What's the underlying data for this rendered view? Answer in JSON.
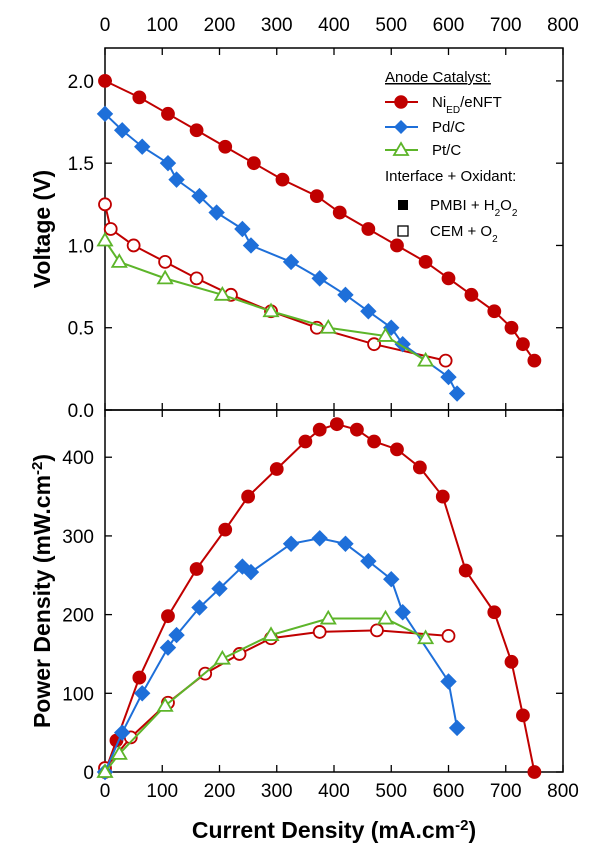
{
  "chart_data": [
    {
      "type": "line",
      "panel": "top",
      "ylabel": "Voltage (V)",
      "xlim": [
        0,
        800
      ],
      "ylim": [
        0,
        2.2
      ],
      "x_ticks": [
        "0",
        "100",
        "200",
        "300",
        "400",
        "500",
        "600",
        "700",
        "800"
      ],
      "y_ticks": [
        "0.0",
        "0.5",
        "1.0",
        "1.5",
        "2.0"
      ],
      "series": [
        {
          "name": "Ni/eNFT",
          "color": "#c00000",
          "marker": "circle",
          "fill": "filled",
          "x": [
            0,
            60,
            110,
            160,
            210,
            260,
            310,
            370,
            410,
            460,
            510,
            560,
            600,
            640,
            680,
            710,
            730,
            750
          ],
          "y": [
            2.0,
            1.9,
            1.8,
            1.7,
            1.6,
            1.5,
            1.4,
            1.3,
            1.2,
            1.1,
            1.0,
            0.9,
            0.8,
            0.7,
            0.6,
            0.5,
            0.4,
            0.3
          ]
        },
        {
          "name": "Ni/eNFT (CEM + O2)",
          "color": "#c00000",
          "marker": "circle",
          "fill": "open",
          "x": [
            0,
            10,
            50,
            105,
            160,
            220,
            290,
            370,
            470,
            595
          ],
          "y": [
            1.25,
            1.1,
            1.0,
            0.9,
            0.8,
            0.7,
            0.6,
            0.5,
            0.4,
            0.3
          ]
        },
        {
          "name": "Pd/C",
          "color": "#1e6fd9",
          "marker": "diamond",
          "fill": "filled",
          "x": [
            0,
            30,
            65,
            110,
            125,
            165,
            195,
            240,
            255,
            325,
            375,
            420,
            460,
            500,
            520,
            600,
            615
          ],
          "y": [
            1.8,
            1.7,
            1.6,
            1.5,
            1.4,
            1.3,
            1.2,
            1.1,
            1.0,
            0.9,
            0.8,
            0.7,
            0.6,
            0.5,
            0.4,
            0.2,
            0.1
          ]
        },
        {
          "name": "Pt/C",
          "color": "#5db52a",
          "marker": "triangle",
          "fill": "open",
          "x": [
            0,
            25,
            105,
            205,
            290,
            390,
            490,
            560
          ],
          "y": [
            1.03,
            0.9,
            0.8,
            0.7,
            0.6,
            0.5,
            0.45,
            0.3
          ]
        }
      ],
      "legend": {
        "placement": "top-right",
        "header1": "Anode Catalyst:",
        "entry1_main": "Ni",
        "entry1_sub": "ED",
        "entry1_rest": "/eNFT",
        "entry2": "Pd/C",
        "entry3": "Pt/C",
        "header2": "Interface + Oxidant:",
        "entry4_main": "PMBI + H",
        "entry4_sub": "2",
        "entry4_mid": "O",
        "entry4_sub2": "2",
        "entry5_main": "CEM + O",
        "entry5_sub": "2"
      }
    },
    {
      "type": "line",
      "panel": "bottom",
      "ylabel_main": "Power Density (mW.cm",
      "ylabel_sup": "-2",
      "ylabel_end": ")",
      "xlabel_main": "Current Density (mA.cm",
      "xlabel_sup": "-2",
      "xlabel_end": ")",
      "xlim": [
        0,
        800
      ],
      "ylim": [
        0,
        460
      ],
      "x_ticks": [
        "0",
        "100",
        "200",
        "300",
        "400",
        "500",
        "600",
        "700",
        "800"
      ],
      "y_ticks": [
        "0",
        "100",
        "200",
        "300",
        "400"
      ],
      "series": [
        {
          "name": "Ni/eNFT",
          "color": "#c00000",
          "marker": "circle",
          "fill": "filled",
          "x": [
            0,
            20,
            60,
            110,
            160,
            210,
            250,
            300,
            350,
            375,
            405,
            440,
            470,
            510,
            550,
            590,
            630,
            680,
            710,
            730,
            750
          ],
          "y": [
            0,
            40,
            120,
            198,
            258,
            308,
            350,
            385,
            420,
            435,
            442,
            435,
            420,
            410,
            387,
            350,
            256,
            203,
            140,
            72,
            0
          ]
        },
        {
          "name": "Ni/eNFT (CEM + O2)",
          "color": "#c00000",
          "marker": "circle",
          "fill": "open",
          "x": [
            0,
            45,
            110,
            175,
            235,
            290,
            375,
            475,
            600
          ],
          "y": [
            5,
            44,
            88,
            125,
            150,
            170,
            178,
            180,
            173
          ]
        },
        {
          "name": "Pd/C",
          "color": "#1e6fd9",
          "marker": "diamond",
          "fill": "filled",
          "x": [
            0,
            30,
            65,
            110,
            125,
            165,
            200,
            240,
            255,
            325,
            375,
            420,
            460,
            500,
            520,
            600,
            615
          ],
          "y": [
            0,
            50,
            100,
            158,
            174,
            209,
            233,
            261,
            254,
            290,
            297,
            290,
            268,
            245,
            203,
            115,
            56
          ]
        },
        {
          "name": "Pt/C",
          "color": "#5db52a",
          "marker": "triangle",
          "fill": "open",
          "x": [
            0,
            25,
            105,
            205,
            290,
            390,
            490,
            560
          ],
          "y": [
            0,
            23,
            84,
            144,
            174,
            195,
            195,
            170
          ]
        }
      ]
    }
  ]
}
